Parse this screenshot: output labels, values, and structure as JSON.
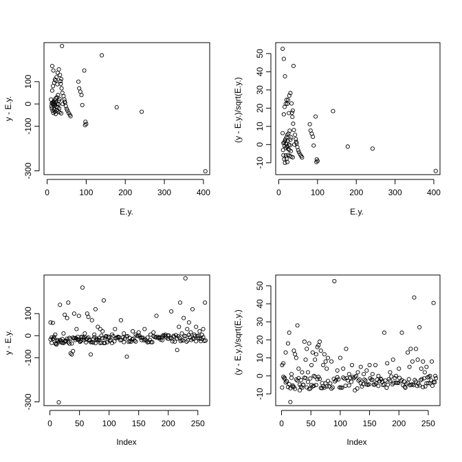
{
  "chart_data": [
    {
      "type": "scatter",
      "title": "",
      "xlabel": "E.y.",
      "ylabel": "y - E.y.",
      "xlim": [
        -8,
        416
      ],
      "ylim": [
        -317,
        275
      ],
      "xticks": [
        0,
        100,
        200,
        300,
        400
      ],
      "yticks": [
        -300,
        -100,
        0,
        100
      ],
      "marker": "open-circle",
      "grid": false,
      "points": [
        [
          12,
          3
        ],
        [
          14,
          5
        ],
        [
          15,
          -3
        ],
        [
          16,
          8
        ],
        [
          17,
          12
        ],
        [
          18,
          -8
        ],
        [
          19,
          2
        ],
        [
          20,
          18
        ],
        [
          21,
          -5
        ],
        [
          22,
          25
        ],
        [
          23,
          10
        ],
        [
          24,
          -12
        ],
        [
          25,
          30
        ],
        [
          26,
          0
        ],
        [
          27,
          -15
        ],
        [
          28,
          40
        ],
        [
          29,
          -2
        ],
        [
          30,
          15
        ],
        [
          31,
          -20
        ],
        [
          32,
          22
        ],
        [
          13,
          60
        ],
        [
          15,
          80
        ],
        [
          18,
          95
        ],
        [
          20,
          110
        ],
        [
          24,
          120
        ],
        [
          27,
          140
        ],
        [
          30,
          155
        ],
        [
          33,
          130
        ],
        [
          35,
          90
        ],
        [
          37,
          70
        ],
        [
          39,
          50
        ],
        [
          42,
          35
        ],
        [
          44,
          20
        ],
        [
          46,
          5
        ],
        [
          48,
          -10
        ],
        [
          50,
          -22
        ],
        [
          52,
          -30
        ],
        [
          55,
          -40
        ],
        [
          58,
          -48
        ],
        [
          60,
          -55
        ],
        [
          13,
          170
        ],
        [
          16,
          150
        ],
        [
          22,
          105
        ],
        [
          26,
          88
        ],
        [
          34,
          102
        ],
        [
          36,
          112
        ],
        [
          10,
          20
        ],
        [
          11,
          -10
        ],
        [
          12,
          -20
        ],
        [
          14,
          -30
        ],
        [
          16,
          -40
        ],
        [
          18,
          -25
        ],
        [
          20,
          -35
        ],
        [
          22,
          -45
        ],
        [
          24,
          -28
        ],
        [
          28,
          -33
        ],
        [
          32,
          -38
        ],
        [
          36,
          -42
        ],
        [
          40,
          0
        ],
        [
          45,
          10
        ],
        [
          38,
          260
        ],
        [
          80,
          100
        ],
        [
          82,
          70
        ],
        [
          85,
          55
        ],
        [
          88,
          40
        ],
        [
          90,
          -5
        ],
        [
          95,
          150
        ],
        [
          97,
          -95
        ],
        [
          98,
          -80
        ],
        [
          100,
          -90
        ],
        [
          140,
          218
        ],
        [
          178,
          -15
        ],
        [
          242,
          -35
        ],
        [
          405,
          -302
        ]
      ]
    },
    {
      "type": "scatter",
      "title": "",
      "xlabel": "E.y.",
      "ylabel": "(y - E.y.)/sqrt(E.y.)",
      "xlim": [
        -8,
        416
      ],
      "ylim": [
        -16.5,
        56
      ],
      "xticks": [
        0,
        100,
        200,
        300,
        400
      ],
      "yticks": [
        -10,
        0,
        10,
        20,
        30,
        40,
        50
      ],
      "marker": "open-circle",
      "grid": false,
      "points": [
        [
          12,
          0.8
        ],
        [
          14,
          1.3
        ],
        [
          15,
          -0.8
        ],
        [
          16,
          2
        ],
        [
          17,
          2.9
        ],
        [
          18,
          -1.9
        ],
        [
          19,
          0.5
        ],
        [
          20,
          4
        ],
        [
          21,
          -1.1
        ],
        [
          22,
          5.3
        ],
        [
          23,
          2.1
        ],
        [
          24,
          -2.4
        ],
        [
          25,
          6
        ],
        [
          26,
          0
        ],
        [
          27,
          -2.9
        ],
        [
          28,
          7.6
        ],
        [
          29,
          -0.4
        ],
        [
          30,
          2.7
        ],
        [
          31,
          -3.6
        ],
        [
          32,
          3.9
        ],
        [
          13,
          16.6
        ],
        [
          15,
          20.7
        ],
        [
          18,
          22.4
        ],
        [
          20,
          24.6
        ],
        [
          24,
          24.5
        ],
        [
          27,
          26.9
        ],
        [
          30,
          28.3
        ],
        [
          33,
          22.6
        ],
        [
          35,
          15.2
        ],
        [
          37,
          11.5
        ],
        [
          39,
          8
        ],
        [
          42,
          5.4
        ],
        [
          44,
          3
        ],
        [
          46,
          0.7
        ],
        [
          48,
          -1.4
        ],
        [
          50,
          -3.1
        ],
        [
          52,
          -4.2
        ],
        [
          55,
          -5.4
        ],
        [
          58,
          -6.3
        ],
        [
          60,
          -7.1
        ],
        [
          13,
          47.1
        ],
        [
          16,
          37.5
        ],
        [
          22,
          22.4
        ],
        [
          26,
          17.3
        ],
        [
          34,
          17.5
        ],
        [
          36,
          18.7
        ],
        [
          10,
          6.3
        ],
        [
          11,
          -3
        ],
        [
          12,
          -5.8
        ],
        [
          14,
          -8
        ],
        [
          16,
          -10
        ],
        [
          18,
          -5.9
        ],
        [
          20,
          -7.8
        ],
        [
          22,
          -9.6
        ],
        [
          24,
          -5.7
        ],
        [
          28,
          -6.2
        ],
        [
          32,
          -6.7
        ],
        [
          36,
          -7
        ],
        [
          40,
          0
        ],
        [
          45,
          1.5
        ],
        [
          10,
          52.6
        ],
        [
          38,
          43.2
        ],
        [
          80,
          11.2
        ],
        [
          82,
          7.7
        ],
        [
          85,
          6
        ],
        [
          88,
          4.3
        ],
        [
          90,
          -0.5
        ],
        [
          95,
          15.4
        ],
        [
          97,
          -9.6
        ],
        [
          98,
          -8.1
        ],
        [
          100,
          -9
        ],
        [
          140,
          18.4
        ],
        [
          178,
          -1.1
        ],
        [
          242,
          -2.2
        ],
        [
          405,
          -14.5
        ]
      ]
    },
    {
      "type": "scatter",
      "title": "",
      "xlabel": "Index",
      "ylabel": "y - E.y.",
      "xlim": [
        -10,
        270
      ],
      "ylim": [
        -317,
        275
      ],
      "xticks": [
        0,
        50,
        100,
        150,
        200,
        250
      ],
      "yticks": [
        -300,
        -100,
        0,
        100
      ],
      "marker": "open-circle",
      "grid": false,
      "points": [
        [
          1,
          60
        ],
        [
          3,
          -8
        ],
        [
          5,
          58
        ],
        [
          7,
          -5
        ],
        [
          9,
          5
        ],
        [
          11,
          -40
        ],
        [
          13,
          -20
        ],
        [
          15,
          -302
        ],
        [
          17,
          140
        ],
        [
          19,
          -30
        ],
        [
          21,
          -15
        ],
        [
          23,
          10
        ],
        [
          25,
          95
        ],
        [
          27,
          -25
        ],
        [
          29,
          80
        ],
        [
          31,
          150
        ],
        [
          33,
          -10
        ],
        [
          35,
          -80
        ],
        [
          37,
          -85
        ],
        [
          39,
          -70
        ],
        [
          41,
          100
        ],
        [
          43,
          -20
        ],
        [
          45,
          30
        ],
        [
          47,
          -18
        ],
        [
          49,
          90
        ],
        [
          51,
          -25
        ],
        [
          53,
          -5
        ],
        [
          55,
          218
        ],
        [
          57,
          -20
        ],
        [
          59,
          10
        ],
        [
          61,
          -30
        ],
        [
          63,
          100
        ],
        [
          65,
          85
        ],
        [
          67,
          -22
        ],
        [
          69,
          -85
        ],
        [
          71,
          70
        ],
        [
          73,
          -15
        ],
        [
          75,
          5
        ],
        [
          77,
          120
        ],
        [
          79,
          -20
        ],
        [
          81,
          40
        ],
        [
          83,
          -10
        ],
        [
          85,
          30
        ],
        [
          87,
          0
        ],
        [
          89,
          20
        ],
        [
          91,
          160
        ],
        [
          93,
          -12
        ],
        [
          95,
          -5
        ],
        [
          100,
          -10
        ],
        [
          105,
          5
        ],
        [
          110,
          30
        ],
        [
          115,
          -8
        ],
        [
          120,
          70
        ],
        [
          125,
          10
        ],
        [
          130,
          -95
        ],
        [
          135,
          -10
        ],
        [
          140,
          20
        ],
        [
          145,
          5
        ],
        [
          150,
          15
        ],
        [
          155,
          -20
        ],
        [
          160,
          30
        ],
        [
          165,
          -30
        ],
        [
          170,
          5
        ],
        [
          175,
          15
        ],
        [
          180,
          90
        ],
        [
          185,
          -10
        ],
        [
          190,
          -20
        ],
        [
          195,
          5
        ],
        [
          200,
          -15
        ],
        [
          205,
          110
        ],
        [
          210,
          -5
        ],
        [
          215,
          -65
        ],
        [
          218,
          40
        ],
        [
          220,
          150
        ],
        [
          223,
          10
        ],
        [
          226,
          80
        ],
        [
          229,
          260
        ],
        [
          232,
          30
        ],
        [
          235,
          60
        ],
        [
          238,
          15
        ],
        [
          241,
          120
        ],
        [
          244,
          5
        ],
        [
          247,
          40
        ],
        [
          250,
          -10
        ],
        [
          253,
          20
        ],
        [
          256,
          -15
        ],
        [
          259,
          30
        ],
        [
          262,
          150
        ]
      ],
      "band": {
        "from": 1,
        "to": 263,
        "step": 2,
        "start": -22,
        "end": -10,
        "spread": 16
      }
    },
    {
      "type": "scatter",
      "title": "",
      "xlabel": "Index",
      "ylabel": "(y - E.y.)/sqrt(E.y.)",
      "xlim": [
        -10,
        270
      ],
      "ylim": [
        -16.5,
        56
      ],
      "xticks": [
        0,
        50,
        100,
        150,
        200,
        250
      ],
      "yticks": [
        -10,
        0,
        10,
        20,
        30,
        40,
        50
      ],
      "marker": "open-circle",
      "grid": false,
      "points": [
        [
          1,
          6
        ],
        [
          3,
          7
        ],
        [
          5,
          -1
        ],
        [
          7,
          13
        ],
        [
          9,
          -3
        ],
        [
          11,
          18
        ],
        [
          13,
          24
        ],
        [
          15,
          -14.5
        ],
        [
          17,
          1
        ],
        [
          19,
          -6
        ],
        [
          21,
          14
        ],
        [
          23,
          12
        ],
        [
          25,
          10
        ],
        [
          27,
          28
        ],
        [
          29,
          4
        ],
        [
          31,
          -8
        ],
        [
          33,
          -6
        ],
        [
          35,
          2
        ],
        [
          37,
          -5
        ],
        [
          39,
          19
        ],
        [
          41,
          9
        ],
        [
          43,
          15
        ],
        [
          45,
          2
        ],
        [
          47,
          18
        ],
        [
          49,
          -7
        ],
        [
          51,
          6
        ],
        [
          53,
          13
        ],
        [
          55,
          0
        ],
        [
          57,
          9
        ],
        [
          59,
          12
        ],
        [
          61,
          16
        ],
        [
          63,
          17
        ],
        [
          65,
          19
        ],
        [
          67,
          14
        ],
        [
          69,
          -4
        ],
        [
          71,
          6
        ],
        [
          73,
          12
        ],
        [
          75,
          8
        ],
        [
          77,
          4
        ],
        [
          79,
          10
        ],
        [
          85,
          8
        ],
        [
          90,
          52.6
        ],
        [
          95,
          3
        ],
        [
          100,
          10
        ],
        [
          105,
          4
        ],
        [
          110,
          15
        ],
        [
          115,
          1
        ],
        [
          120,
          6
        ],
        [
          125,
          -8
        ],
        [
          130,
          2
        ],
        [
          135,
          5
        ],
        [
          140,
          1
        ],
        [
          145,
          3
        ],
        [
          150,
          6
        ],
        [
          155,
          1
        ],
        [
          160,
          6
        ],
        [
          165,
          0
        ],
        [
          170,
          -2
        ],
        [
          175,
          24
        ],
        [
          180,
          7
        ],
        [
          185,
          2
        ],
        [
          190,
          9
        ],
        [
          195,
          0
        ],
        [
          200,
          4
        ],
        [
          205,
          24
        ],
        [
          210,
          -6
        ],
        [
          215,
          13
        ],
        [
          218,
          5
        ],
        [
          220,
          15
        ],
        [
          223,
          8
        ],
        [
          226,
          43.5
        ],
        [
          229,
          15
        ],
        [
          232,
          9
        ],
        [
          235,
          27
        ],
        [
          238,
          4
        ],
        [
          241,
          8
        ],
        [
          244,
          2
        ],
        [
          247,
          5
        ],
        [
          250,
          -4
        ],
        [
          253,
          0
        ],
        [
          256,
          8
        ],
        [
          259,
          40.5
        ],
        [
          262,
          0
        ]
      ],
      "band": {
        "from": 1,
        "to": 263,
        "step": 2,
        "start": -4,
        "end": -3,
        "spread": 3.5
      }
    }
  ]
}
